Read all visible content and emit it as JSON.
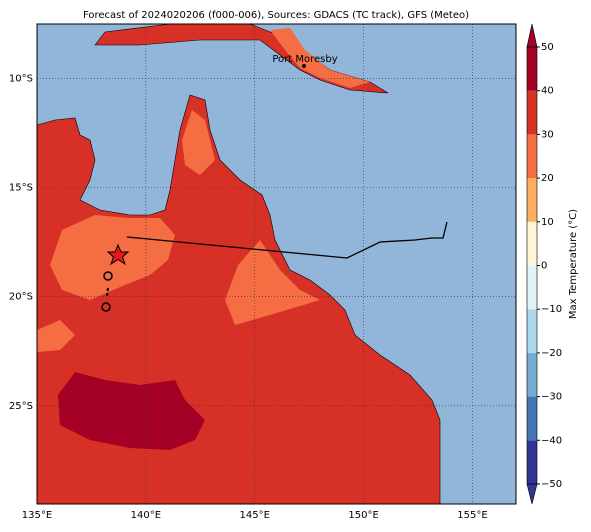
{
  "title": "Forecast of 2024020206 (f000-006), Sources: GDACS (TC track), GFS (Meteo)",
  "map": {
    "xlim": [
      135,
      157
    ],
    "ylim": [
      -29.5,
      -7.5
    ],
    "xticks": [
      {
        "value": 135,
        "label": "135°E"
      },
      {
        "value": 140,
        "label": "140°E"
      },
      {
        "value": 145,
        "label": "145°E"
      },
      {
        "value": 150,
        "label": "150°E"
      },
      {
        "value": 155,
        "label": "155°E"
      }
    ],
    "yticks": [
      {
        "value": -10,
        "label": "10°S"
      },
      {
        "value": -15,
        "label": "15°S"
      },
      {
        "value": -20,
        "label": "20°S"
      },
      {
        "value": -25,
        "label": "25°S"
      }
    ],
    "grid": true,
    "place": "Port Moresby"
  },
  "colorbar": {
    "label": "Max Temperature (°C)",
    "lim": [
      -50,
      50
    ],
    "ticks": [
      {
        "value": -50,
        "label": "−50"
      },
      {
        "value": -40,
        "label": "−40"
      },
      {
        "value": -30,
        "label": "−30"
      },
      {
        "value": -20,
        "label": "−20"
      },
      {
        "value": -10,
        "label": "−10"
      },
      0,
      10,
      20,
      30,
      40,
      50
    ],
    "colors": [
      "#313695",
      "#4575b4",
      "#74add1",
      "#abd9e9",
      "#e0f3f8",
      "#fff6d5",
      "#fdae61",
      "#f46d43",
      "#d73027",
      "#a50026"
    ]
  }
}
